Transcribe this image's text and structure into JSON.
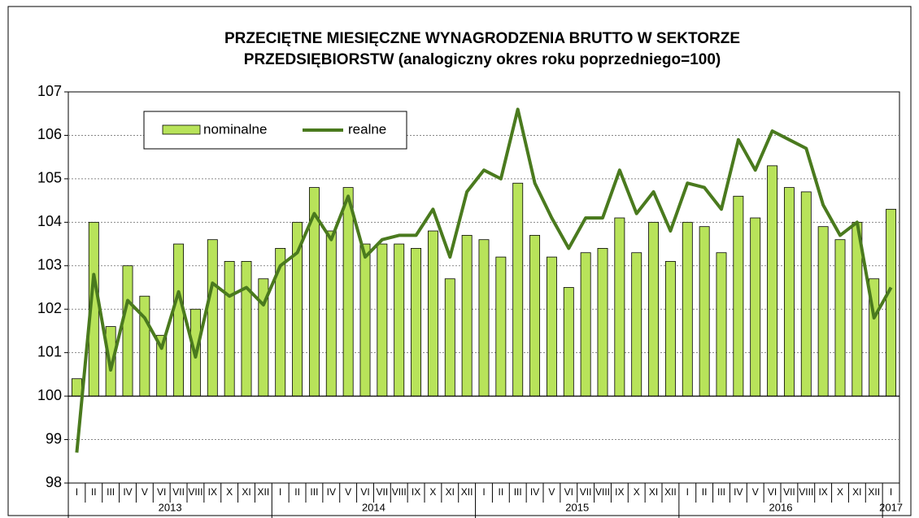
{
  "chart_data": {
    "type": "bar",
    "title": [
      "PRZECIĘTNE MIESIĘCZNE WYNAGRODZENIA BRUTTO W SEKTORZE",
      "PRZEDSIĘBIORSTW (analogiczny okres roku poprzedniego=100)"
    ],
    "categories": [
      "I",
      "II",
      "III",
      "IV",
      "V",
      "VI",
      "VII",
      "VIII",
      "IX",
      "X",
      "XI",
      "XII",
      "I",
      "II",
      "III",
      "IV",
      "V",
      "VI",
      "VII",
      "VIII",
      "IX",
      "X",
      "XI",
      "XII",
      "I",
      "II",
      "III",
      "IV",
      "V",
      "VI",
      "VII",
      "VIII",
      "IX",
      "X",
      "XI",
      "XII",
      "I",
      "II",
      "III",
      "IV",
      "V",
      "VI",
      "VII",
      "VIII",
      "IX",
      "X",
      "XI",
      "XII",
      "I"
    ],
    "groups": [
      "2013",
      "2014",
      "2015",
      "2016",
      "2017"
    ],
    "series": [
      {
        "name": "nominalne",
        "type": "bar",
        "color": "#b8e35a",
        "values": [
          100.4,
          104.0,
          101.6,
          103.0,
          102.3,
          101.4,
          103.5,
          102.0,
          103.6,
          103.1,
          103.1,
          102.7,
          103.4,
          104.0,
          104.8,
          103.8,
          104.8,
          103.5,
          103.5,
          103.5,
          103.4,
          103.8,
          102.7,
          103.7,
          103.6,
          103.2,
          104.9,
          103.7,
          103.2,
          102.5,
          103.3,
          103.4,
          104.1,
          103.3,
          104.0,
          103.1,
          104.0,
          103.9,
          103.3,
          104.6,
          104.1,
          105.3,
          104.8,
          104.7,
          103.9,
          103.6,
          104.0,
          102.7,
          104.3
        ]
      },
      {
        "name": "realne",
        "type": "line",
        "color": "#4a7a1e",
        "values": [
          98.7,
          102.8,
          100.6,
          102.2,
          101.8,
          101.1,
          102.4,
          100.9,
          102.6,
          102.3,
          102.5,
          102.1,
          103.0,
          103.3,
          104.2,
          103.6,
          104.6,
          103.2,
          103.6,
          103.7,
          103.7,
          104.3,
          103.2,
          104.7,
          105.2,
          105.0,
          106.6,
          104.9,
          104.1,
          103.4,
          104.1,
          104.1,
          105.2,
          104.2,
          104.7,
          103.8,
          104.9,
          104.8,
          104.3,
          105.9,
          105.2,
          106.1,
          105.9,
          105.7,
          104.4,
          103.7,
          104.0,
          101.8,
          102.5
        ]
      }
    ],
    "bar_base": 100,
    "ylim": [
      98,
      107
    ],
    "yticks": [
      98,
      99,
      100,
      101,
      102,
      103,
      104,
      105,
      106,
      107
    ],
    "grid": true,
    "legend": "top-left"
  }
}
